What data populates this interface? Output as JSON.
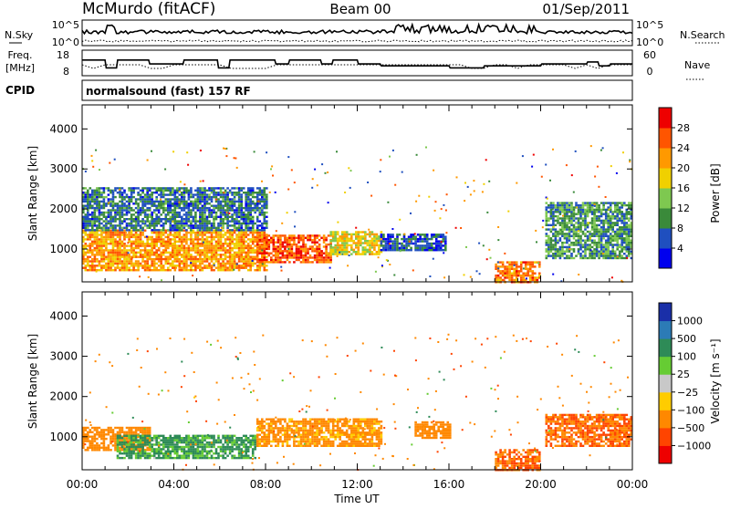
{
  "header": {
    "station": "McMurdo (fitACF)",
    "beam": "Beam 00",
    "date": "01/Sep/2011"
  },
  "nsky_panel": {
    "left_label": "N.Sky",
    "right_label": "N.Search",
    "ticks_left": [
      "10^5",
      "10^0"
    ],
    "ticks_right": [
      "10^5",
      "10^0"
    ]
  },
  "freq_panel": {
    "left_label_1": "Freq.",
    "left_label_2": "[MHz]",
    "right_label": "Nave",
    "ticks_left": [
      "18",
      "8"
    ],
    "ticks_right": [
      "60",
      "0"
    ],
    "freq_series": [
      [
        0,
        14
      ],
      [
        1,
        14
      ],
      [
        1.05,
        10
      ],
      [
        1.5,
        10
      ],
      [
        1.55,
        14
      ],
      [
        2.9,
        14
      ],
      [
        2.95,
        12
      ],
      [
        4.4,
        12
      ],
      [
        4.45,
        14
      ],
      [
        5.9,
        14
      ],
      [
        5.95,
        10
      ],
      [
        6.4,
        10
      ],
      [
        6.45,
        14
      ],
      [
        8.4,
        14
      ],
      [
        8.45,
        12
      ],
      [
        9.0,
        12
      ],
      [
        9.05,
        14
      ],
      [
        10.4,
        14
      ],
      [
        10.45,
        12
      ],
      [
        10.9,
        12
      ],
      [
        10.95,
        14
      ],
      [
        12.0,
        14
      ],
      [
        12.05,
        12
      ],
      [
        13.0,
        12
      ],
      [
        13.05,
        11
      ],
      [
        16.0,
        11
      ],
      [
        16.05,
        10
      ],
      [
        17.5,
        10
      ],
      [
        17.55,
        11
      ],
      [
        20.0,
        11
      ],
      [
        20.05,
        12
      ],
      [
        22.0,
        12
      ],
      [
        22.05,
        13
      ],
      [
        22.5,
        13
      ],
      [
        22.55,
        11
      ],
      [
        23.0,
        11
      ],
      [
        23.05,
        12
      ],
      [
        24,
        12
      ]
    ]
  },
  "cpid_panel": {
    "label": "CPID",
    "text": "normalsound (fast) 157 RF"
  },
  "power_panel": {
    "ylabel": "Slant Range [km]",
    "yticks": [
      "1000",
      "2000",
      "3000",
      "4000"
    ],
    "cbar_title": "Power [dB]",
    "cbar_ticks": [
      "4",
      "8",
      "12",
      "16",
      "20",
      "24",
      "28"
    ],
    "cbar_colors": [
      "#0000ee",
      "#1f4fbf",
      "#3a8a3a",
      "#7ec850",
      "#f0d000",
      "#ff9900",
      "#ff5500",
      "#ee0000"
    ]
  },
  "velocity_panel": {
    "ylabel": "Slant Range [km]",
    "yticks": [
      "1000",
      "2000",
      "3000",
      "4000"
    ],
    "cbar_title": "Velocity [m s⁻¹]",
    "cbar_ticks": [
      "1000",
      "500",
      "100",
      "25",
      "−25",
      "−100",
      "−500",
      "−1000"
    ],
    "cbar_colors": [
      "#1a2fa8",
      "#2c7bb6",
      "#2e8b57",
      "#66cc33",
      "#c8c8c8",
      "#ffcc00",
      "#ff8800",
      "#ff4400",
      "#ee0000"
    ]
  },
  "xaxis": {
    "ticks": [
      "00:00",
      "04:00",
      "08:00",
      "12:00",
      "16:00",
      "20:00",
      "00:00"
    ],
    "label": "Time UT"
  },
  "chart_data": {
    "type": "heatmap",
    "title": "McMurdo (fitACF) Beam 00 01/Sep/2011",
    "xlabel": "Time UT",
    "ylabel": "Slant Range [km]",
    "xlim": [
      0,
      24
    ],
    "ylim": [
      180,
      4600
    ],
    "power_range_dB": [
      0,
      30
    ],
    "velocity_range_ms": [
      -1000,
      1000
    ],
    "power_echo_regions": [
      {
        "t0": 0.0,
        "t1": 8.0,
        "r0": 500,
        "r1": 1500,
        "power": 22
      },
      {
        "t0": 0.0,
        "t1": 8.0,
        "r0": 1500,
        "r1": 2600,
        "power": 8
      },
      {
        "t0": 7.6,
        "t1": 10.8,
        "r0": 700,
        "r1": 1400,
        "power": 26
      },
      {
        "t0": 10.8,
        "t1": 13.0,
        "r0": 900,
        "r1": 1500,
        "power": 18
      },
      {
        "t0": 13.0,
        "t1": 15.8,
        "r0": 1000,
        "r1": 1400,
        "power": 6
      },
      {
        "t0": 18.0,
        "t1": 20.0,
        "r0": 200,
        "r1": 700,
        "power": 24
      },
      {
        "t0": 20.2,
        "t1": 24.0,
        "r0": 800,
        "r1": 2200,
        "power": 10
      }
    ],
    "velocity_echo_regions": [
      {
        "t0": 0.0,
        "t1": 3.0,
        "r0": 700,
        "r1": 1300,
        "velocity": -150
      },
      {
        "t0": 1.5,
        "t1": 7.5,
        "r0": 500,
        "r1": 1100,
        "velocity": 100
      },
      {
        "t0": 7.6,
        "t1": 13.0,
        "r0": 800,
        "r1": 1500,
        "velocity": -120
      },
      {
        "t0": 14.5,
        "t1": 16.0,
        "r0": 1000,
        "r1": 1400,
        "velocity": -200
      },
      {
        "t0": 18.0,
        "t1": 20.0,
        "r0": 200,
        "r1": 700,
        "velocity": -300
      },
      {
        "t0": 20.2,
        "t1": 24.0,
        "r0": 800,
        "r1": 1600,
        "velocity": -300
      }
    ]
  }
}
